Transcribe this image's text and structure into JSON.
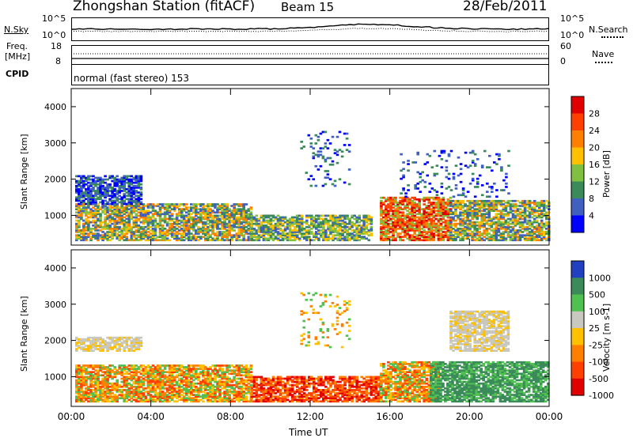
{
  "header": {
    "title": "Zhongshan Station (fitACF)",
    "beam": "Beam 15",
    "date": "28/Feb/2011"
  },
  "top_panels": {
    "nsky": {
      "label": "N.Sky",
      "ticks": [
        "10^5",
        "10^0"
      ]
    },
    "nsearch": {
      "label": "N.Search",
      "ticks": [
        "10^5",
        "10^0"
      ]
    },
    "freq": {
      "label_line1": "Freq.",
      "label_line2": "[MHz]",
      "ticks": [
        "18",
        "8"
      ]
    },
    "nave": {
      "label": "Nave",
      "ticks": [
        "60",
        "0"
      ]
    },
    "cpid": {
      "label": "CPID",
      "text": "normal (fast stereo) 153"
    }
  },
  "chart_data": [
    {
      "type": "heatmap",
      "name": "Power",
      "ylabel": "Slant Range [km]",
      "yticks": [
        "4000",
        "3000",
        "2000",
        "1000"
      ],
      "ylim": [
        180,
        4500
      ],
      "xlabel": "Time UT",
      "xticks": [
        "00:00",
        "04:00",
        "08:00",
        "12:00",
        "16:00",
        "20:00",
        "00:00"
      ],
      "xlim_hours": [
        0,
        24
      ],
      "colorbar": {
        "label": "Power [dB]",
        "ticks": [
          "28",
          "24",
          "20",
          "16",
          "12",
          "8",
          "4"
        ],
        "colors": [
          "#e00000",
          "#ff4000",
          "#ff8000",
          "#ffc000",
          "#80c040",
          "#3a8a5a",
          "#4060c0",
          "#0000ff"
        ]
      },
      "echo_regions": [
        {
          "t0": 0.2,
          "t1": 9.0,
          "r0": 300,
          "r1": 1300,
          "level": "strong"
        },
        {
          "t0": 0.2,
          "t1": 3.5,
          "r0": 1300,
          "r1": 2100,
          "level": "weak"
        },
        {
          "t0": 9.0,
          "t1": 15.0,
          "r0": 300,
          "r1": 1000,
          "level": "medium"
        },
        {
          "t0": 11.5,
          "t1": 14.0,
          "r0": 1800,
          "r1": 3300,
          "level": "sparse"
        },
        {
          "t0": 15.5,
          "t1": 19.0,
          "r0": 300,
          "r1": 1500,
          "level": "very-strong"
        },
        {
          "t0": 19.0,
          "t1": 24.0,
          "r0": 300,
          "r1": 1400,
          "level": "strong"
        },
        {
          "t0": 16.5,
          "t1": 22.0,
          "r0": 1500,
          "r1": 2800,
          "level": "sparse"
        }
      ]
    },
    {
      "type": "heatmap",
      "name": "Velocity",
      "ylabel": "Slant Range [km]",
      "yticks": [
        "4000",
        "3000",
        "2000",
        "1000"
      ],
      "ylim": [
        180,
        4500
      ],
      "xlabel": "Time UT",
      "xticks": [
        "00:00",
        "04:00",
        "08:00",
        "12:00",
        "16:00",
        "20:00",
        "00:00"
      ],
      "xlim_hours": [
        0,
        24
      ],
      "colorbar": {
        "label": "Velocity [m s-1]",
        "ticks": [
          "1000",
          "500",
          "100",
          "25",
          "-25",
          "-100",
          "-500",
          "-1000"
        ],
        "colors": [
          "#2040c0",
          "#3a8a5a",
          "#50c050",
          "#c8c8c0",
          "#ffc000",
          "#ff8000",
          "#ff4000",
          "#e00000"
        ]
      },
      "echo_regions": [
        {
          "t0": 0.2,
          "t1": 9.0,
          "r0": 300,
          "r1": 1300,
          "level": "orange"
        },
        {
          "t0": 0.2,
          "t1": 3.5,
          "r0": 1700,
          "r1": 2100,
          "level": "gray"
        },
        {
          "t0": 9.0,
          "t1": 15.5,
          "r0": 300,
          "r1": 1000,
          "level": "red"
        },
        {
          "t0": 15.5,
          "t1": 18.5,
          "r0": 300,
          "r1": 1400,
          "level": "orange"
        },
        {
          "t0": 18.0,
          "t1": 24.0,
          "r0": 300,
          "r1": 1400,
          "level": "green"
        },
        {
          "t0": 11.5,
          "t1": 14.0,
          "r0": 1800,
          "r1": 3300,
          "level": "sparse"
        },
        {
          "t0": 19.0,
          "t1": 22.0,
          "r0": 1700,
          "r1": 2800,
          "level": "gray"
        }
      ]
    }
  ]
}
